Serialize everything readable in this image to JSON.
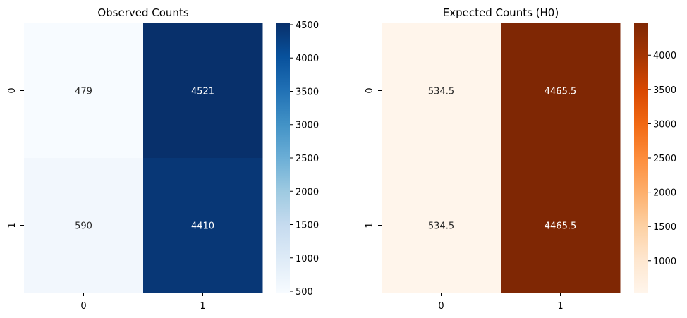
{
  "chart_data": [
    {
      "type": "heatmap",
      "title": "Observed Counts",
      "x_categories": [
        "0",
        "1"
      ],
      "y_categories": [
        "0",
        "1"
      ],
      "values": [
        [
          479,
          4521
        ],
        [
          590,
          4410
        ]
      ],
      "cell_labels": [
        [
          "479",
          "4521"
        ],
        [
          "590",
          "4410"
        ]
      ],
      "colormap": "Blues",
      "color_range": [
        479,
        4521
      ],
      "colorbar_ticks": [
        500,
        1000,
        1500,
        2000,
        2500,
        3000,
        3500,
        4000,
        4500
      ],
      "colorbar_tick_labels": [
        "500",
        "1000",
        "1500",
        "2000",
        "2500",
        "3000",
        "3500",
        "4000",
        "4500"
      ],
      "xlabel": "",
      "ylabel": ""
    },
    {
      "type": "heatmap",
      "title": "Expected Counts (H0)",
      "x_categories": [
        "0",
        "1"
      ],
      "y_categories": [
        "0",
        "1"
      ],
      "values": [
        [
          534.5,
          4465.5
        ],
        [
          534.5,
          4465.5
        ]
      ],
      "cell_labels": [
        [
          "534.5",
          "4465.5"
        ],
        [
          "534.5",
          "4465.5"
        ]
      ],
      "colormap": "Oranges",
      "color_range": [
        534.5,
        4465.5
      ],
      "colorbar_ticks": [
        1000,
        1500,
        2000,
        2500,
        3000,
        3500,
        4000
      ],
      "colorbar_tick_labels": [
        "1000",
        "1500",
        "2000",
        "2500",
        "3000",
        "3500",
        "4000"
      ],
      "xlabel": "",
      "ylabel": ""
    }
  ],
  "colors": {
    "blues": [
      "#f7fbff",
      "#deebf7",
      "#c6dbef",
      "#9ecae1",
      "#6baed6",
      "#4292c6",
      "#2171b5",
      "#08519c",
      "#08306b"
    ],
    "oranges": [
      "#fff5eb",
      "#fee6ce",
      "#fdd0a2",
      "#fdae6b",
      "#fd8d3c",
      "#f16913",
      "#d94801",
      "#a63603",
      "#7f2704"
    ],
    "axis_text": "#000000"
  }
}
